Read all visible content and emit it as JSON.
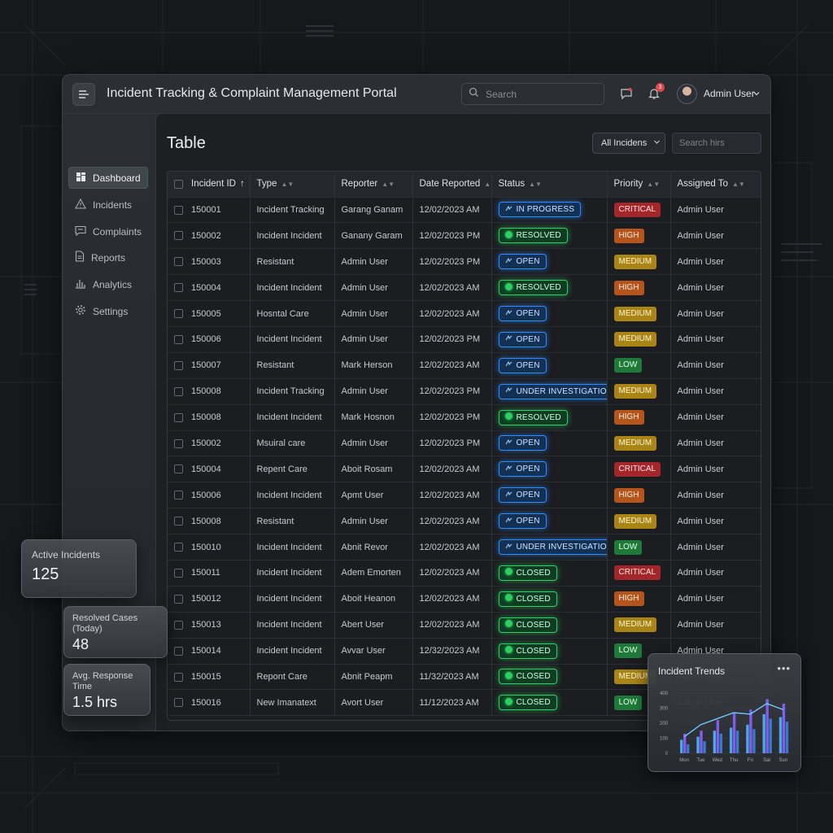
{
  "app": {
    "title": "Incident Tracking & Complaint Management Portal"
  },
  "header": {
    "search_placeholder": "Search",
    "notification_count": "3",
    "user_name": "Admin User"
  },
  "sidebar": {
    "items": [
      {
        "label": "Dashboard",
        "icon": "dashboard-icon",
        "active": true
      },
      {
        "label": "Incidents",
        "icon": "warning-icon",
        "active": false
      },
      {
        "label": "Complaints",
        "icon": "chat-icon",
        "active": false
      },
      {
        "label": "Reports",
        "icon": "document-icon",
        "active": false
      },
      {
        "label": "Analytics",
        "icon": "bar-chart-icon",
        "active": false
      },
      {
        "label": "Settings",
        "icon": "gear-icon",
        "active": false
      }
    ]
  },
  "main": {
    "title": "Table",
    "filter_value": "All Incidens",
    "search_placeholder": "Search hirs"
  },
  "table": {
    "columns": [
      "Incident ID",
      "Type",
      "Reporter",
      "Date Reported",
      "Status",
      "Priority",
      "Assigned To"
    ],
    "rows": [
      {
        "id": "150001",
        "type": "Incident Tracking",
        "reporter": "Garang Ganam",
        "date": "12/02/2023 AM",
        "status": "IN PROGRESS",
        "priority": "CRITICAL",
        "assigned": "Admin User"
      },
      {
        "id": "150002",
        "type": "Incident Incident",
        "reporter": "Ganany Garam",
        "date": "12/02/2023 PM",
        "status": "RESOLVED",
        "priority": "HIGH",
        "assigned": "Admin User"
      },
      {
        "id": "150003",
        "type": "Resistant",
        "reporter": "Admin User",
        "date": "12/02/2023 PM",
        "status": "OPEN",
        "priority": "MEDIUM",
        "assigned": "Admin User"
      },
      {
        "id": "150004",
        "type": "Incident Incident",
        "reporter": "Admin User",
        "date": "12/02/2023 AM",
        "status": "RESOLVED",
        "priority": "HIGH",
        "assigned": "Admin User"
      },
      {
        "id": "150005",
        "type": "Hosntal Care",
        "reporter": "Admin User",
        "date": "12/02/2023 AM",
        "status": "OPEN",
        "priority": "MEDIUM",
        "assigned": "Admin User"
      },
      {
        "id": "150006",
        "type": "Incident Incident",
        "reporter": "Admin User",
        "date": "12/02/2023 PM",
        "status": "OPEN",
        "priority": "MEDIUM",
        "assigned": "Admin User"
      },
      {
        "id": "150007",
        "type": "Resistant",
        "reporter": "Mark Herson",
        "date": "12/02/2023 AM",
        "status": "OPEN",
        "priority": "LOW",
        "assigned": "Admin User"
      },
      {
        "id": "150008",
        "type": "Incident Tracking",
        "reporter": "Admin User",
        "date": "12/02/2023 PM",
        "status": "UNDER INVESTIGATION",
        "priority": "MEDIUM",
        "assigned": "Admin User"
      },
      {
        "id": "150008",
        "type": "Incident Incident",
        "reporter": "Mark Hosnon",
        "date": "12/02/2023 PM",
        "status": "RESOLVED",
        "priority": "HIGH",
        "assigned": "Admin User"
      },
      {
        "id": "150002",
        "type": "Msuiral care",
        "reporter": "Admin User",
        "date": "12/02/2023 PM",
        "status": "OPEN",
        "priority": "MEDIUM",
        "assigned": "Admin User"
      },
      {
        "id": "150004",
        "type": "Repent Care",
        "reporter": "Aboit Rosam",
        "date": "12/02/2023 AM",
        "status": "OPEN",
        "priority": "CRITICAL",
        "assigned": "Admin User"
      },
      {
        "id": "150006",
        "type": "Incident Incident",
        "reporter": "Apmt User",
        "date": "12/02/2023 AM",
        "status": "OPEN",
        "priority": "HIGH",
        "assigned": "Admin User"
      },
      {
        "id": "150008",
        "type": "Resistant",
        "reporter": "Admin User",
        "date": "12/02/2023 AM",
        "status": "OPEN",
        "priority": "MEDIUM",
        "assigned": "Admin User"
      },
      {
        "id": "150010",
        "type": "Incident Incident",
        "reporter": "Abnit Revor",
        "date": "12/02/2023 AM",
        "status": "UNDER INVESTIGATION",
        "priority": "LOW",
        "assigned": "Admin User"
      },
      {
        "id": "150011",
        "type": "Incident Incident",
        "reporter": "Adem Emorten",
        "date": "12/02/2023 AM",
        "status": "CLOSED",
        "priority": "CRITICAL",
        "assigned": "Admin User"
      },
      {
        "id": "150012",
        "type": "Incident Incident",
        "reporter": "Aboit Heanon",
        "date": "12/02/2023 AM",
        "status": "CLOSED",
        "priority": "HIGH",
        "assigned": "Admin User"
      },
      {
        "id": "150013",
        "type": "Incident Incident",
        "reporter": "Abert User",
        "date": "12/02/2023 AM",
        "status": "CLOSED",
        "priority": "MEDIUM",
        "assigned": "Admin User"
      },
      {
        "id": "150014",
        "type": "Incident Incident",
        "reporter": "Avvar User",
        "date": "12/32/2023 AM",
        "status": "CLOSED",
        "priority": "LOW",
        "assigned": "Admin User"
      },
      {
        "id": "150015",
        "type": "Repont Care",
        "reporter": "Abnit Peapm",
        "date": "11/32/2023 AM",
        "status": "CLOSED",
        "priority": "MEDIUM",
        "assigned": "Admin User"
      },
      {
        "id": "150016",
        "type": "New Imanatext",
        "reporter": "Avort User",
        "date": "11/12/2023 AM",
        "status": "CLOSED",
        "priority": "LOW",
        "assigned": "Admin User"
      }
    ]
  },
  "stats": [
    {
      "label": "Active Incidents",
      "value": "125"
    },
    {
      "label": "Resolved Cases (Today)",
      "value": "48"
    },
    {
      "label": "Avg. Response Time",
      "value": "1.5 hrs"
    }
  ],
  "trends": {
    "title": "Incident Trends",
    "more_label": "•••"
  },
  "colors": {
    "status_blue": "#2d8cff",
    "status_green": "#2ecf62",
    "critical": "#a3262a",
    "high": "#b4551d",
    "medium": "#a98417",
    "low": "#1f7a3a"
  },
  "chart_data": {
    "type": "bar",
    "title": "Incident Trends",
    "categories": [
      "Mon",
      "Tue",
      "Wed",
      "Thu",
      "Fri",
      "Sat",
      "Sun"
    ],
    "ylim": [
      0,
      400
    ],
    "yticks": [
      0,
      100,
      200,
      300,
      400
    ],
    "series": [
      {
        "values": [
          90,
          110,
          150,
          170,
          190,
          260,
          240
        ]
      },
      {
        "values": [
          130,
          150,
          220,
          270,
          290,
          360,
          330
        ]
      },
      {
        "values": [
          60,
          80,
          130,
          150,
          160,
          230,
          210
        ]
      }
    ],
    "line": [
      110,
      190,
      230,
      270,
      260,
      330,
      290
    ]
  }
}
